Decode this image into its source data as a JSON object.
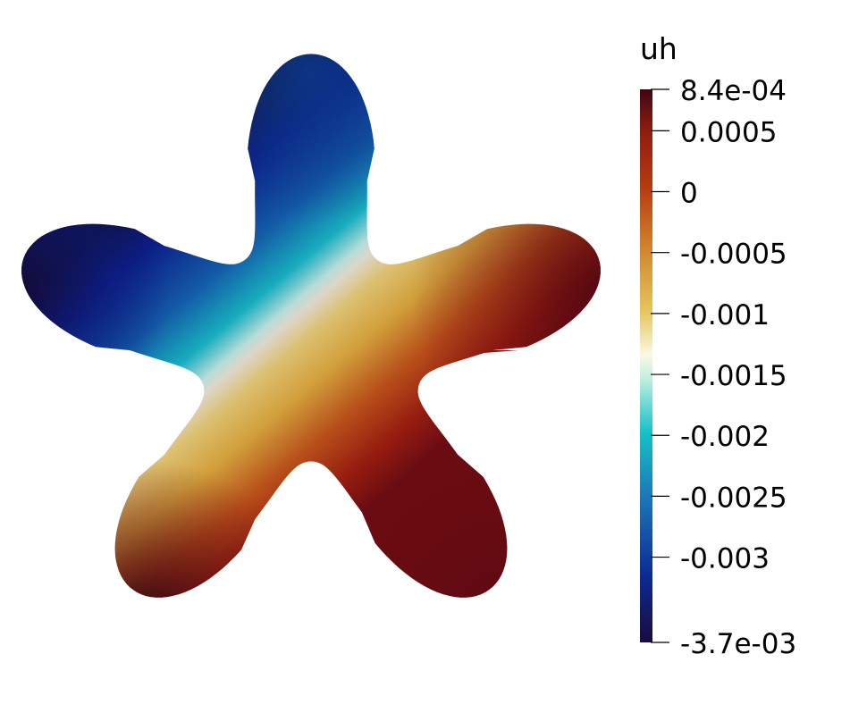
{
  "colorbar": {
    "title": "uh",
    "range": [
      -0.0037,
      0.00084
    ],
    "ticks": [
      {
        "value": 0.00084,
        "label": "8.4e-04"
      },
      {
        "value": 0.0005,
        "label": "0.0005"
      },
      {
        "value": 0,
        "label": "0"
      },
      {
        "value": -0.0005,
        "label": "-0.0005"
      },
      {
        "value": -0.001,
        "label": "-0.001"
      },
      {
        "value": -0.0015,
        "label": "-0.0015"
      },
      {
        "value": -0.002,
        "label": "-0.002"
      },
      {
        "value": -0.0025,
        "label": "-0.0025"
      },
      {
        "value": -0.003,
        "label": "-0.003"
      },
      {
        "value": -0.0037,
        "label": "-3.7e-03"
      }
    ],
    "colormap": [
      "#1a0b3d",
      "#0a1a8c",
      "#1060b0",
      "#12b4c0",
      "#a6eedc",
      "#fbf8e4",
      "#e8c65a",
      "#d08a2a",
      "#b23c12",
      "#8c1a10",
      "#3d0612"
    ]
  },
  "field": {
    "shape": "five-lobed star domain",
    "low_color": "#1a0b3d",
    "high_color": "#5a0a12"
  }
}
